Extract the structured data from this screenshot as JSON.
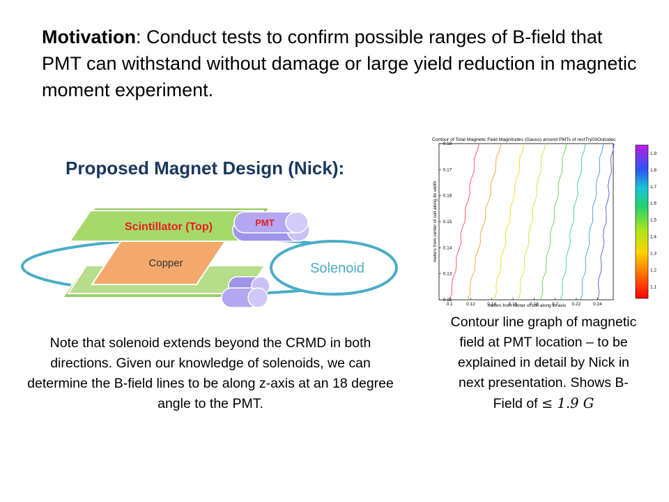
{
  "motivation": {
    "label": "Motivation",
    "text": ": Conduct tests to confirm possible ranges of B-field that PMT can withstand without damage or large yield reduction in magnetic moment experiment."
  },
  "design_title": "Proposed Magnet Design (Nick):",
  "diagram": {
    "scintillator_label": "Scintillator  (Top)",
    "copper_label": "Copper",
    "pmt_label": "PMT",
    "solenoid_label": "Solenoid",
    "colors": {
      "scint_top": "#a6d96a",
      "scint_bottom": "#b6de8a",
      "copper": "#f4a86b",
      "pmt": "#b9aff2",
      "solenoid": "#4bacc6"
    }
  },
  "note": "Note that solenoid extends beyond the CRMD in both directions. Given our knowledge of solenoids, we can determine the B-field lines to be along z-axis at an 18 degree angle to the PMT.",
  "chart_data": {
    "type": "line",
    "title": "Contour of Total Magnetic Field Magnitudes (Gauss) around PMTs of rectTry03Outsidec",
    "xlabel": "meters from center of coil along its axis",
    "ylabel": "meters from center of coil along its width",
    "xlim": [
      0.09,
      0.255
    ],
    "ylim": [
      0.12,
      0.18
    ],
    "x_ticks": [
      "0.1",
      "0.12",
      "0.14",
      "0.16",
      "0.18",
      "0.2",
      "0.22",
      "0.24"
    ],
    "y_ticks": [
      "0.12",
      "0.13",
      "0.14",
      "0.15",
      "0.16",
      "0.17",
      "0.18"
    ],
    "colorbar_ticks": [
      "1.1",
      "1.2",
      "1.3",
      "1.4",
      "1.5",
      "1.6",
      "1.7",
      "1.8",
      "1.9"
    ],
    "series": [
      {
        "level": 1.1,
        "color": "#ff4b4b",
        "x": [
          0.1,
          0.127
        ]
      },
      {
        "level": 1.2,
        "color": "#ff9a2a",
        "x": [
          0.117,
          0.148
        ]
      },
      {
        "level": 1.3,
        "color": "#f5d21e",
        "x": [
          0.142,
          0.17
        ]
      },
      {
        "level": 1.4,
        "color": "#c4e63a",
        "x": [
          0.165,
          0.19
        ]
      },
      {
        "level": 1.5,
        "color": "#5ed44c",
        "x": [
          0.186,
          0.21
        ]
      },
      {
        "level": 1.6,
        "color": "#39c9a0",
        "x": [
          0.205,
          0.228
        ]
      },
      {
        "level": 1.7,
        "color": "#3a9ee8",
        "x": [
          0.224,
          0.245
        ]
      },
      {
        "level": 1.8,
        "color": "#4a55e6",
        "x": [
          0.24,
          0.255
        ]
      }
    ]
  },
  "caption": {
    "text": "Contour line graph of magnetic field at PMT location – to be explained in detail by Nick in next presentation. Shows B-Field of ",
    "math": "≤ 1.9 G"
  }
}
